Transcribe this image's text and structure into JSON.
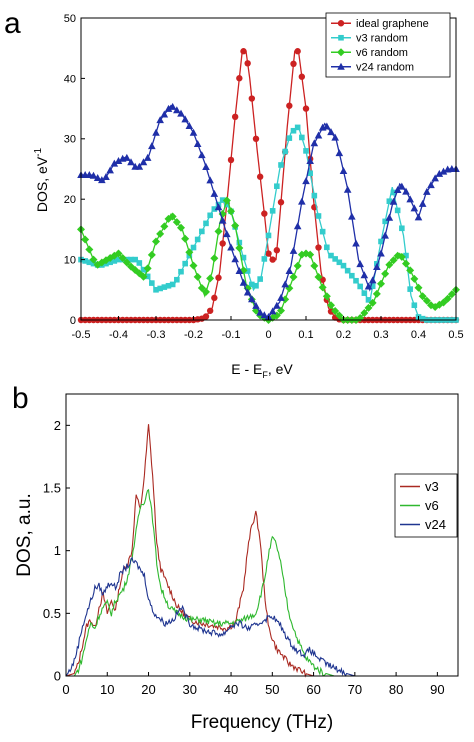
{
  "chart_data": [
    {
      "panel": "a",
      "type": "line",
      "xlabel_main": "E - E",
      "xlabel_sub": "F",
      "xlabel_unit": ", eV",
      "ylabel_main": "DOS, eV",
      "ylabel_sup": "-1",
      "xlim": [
        -0.5,
        0.5
      ],
      "ylim": [
        0,
        50
      ],
      "xticks": [
        "-0.5",
        "-0.4",
        "-0.3",
        "-0.2",
        "-0.1",
        "0",
        "0.1",
        "0.2",
        "0.3",
        "0.4",
        "0.5"
      ],
      "yticks": [
        "0",
        "10",
        "20",
        "30",
        "40",
        "50"
      ],
      "grid": false,
      "legend_position": "top-right",
      "series": [
        {
          "name": "ideal graphene",
          "color": "#cc2222",
          "marker": "circle",
          "points": [
            [
              -0.5,
              0
            ],
            [
              -0.4,
              0
            ],
            [
              -0.3,
              0
            ],
            [
              -0.2,
              0
            ],
            [
              -0.17,
              0.3
            ],
            [
              -0.15,
              2
            ],
            [
              -0.13,
              8
            ],
            [
              -0.11,
              20
            ],
            [
              -0.09,
              33
            ],
            [
              -0.07,
              44.5
            ],
            [
              -0.06,
              44.5
            ],
            [
              -0.05,
              40
            ],
            [
              -0.03,
              28
            ],
            [
              -0.01,
              17
            ],
            [
              0.0,
              11
            ],
            [
              0.01,
              10
            ],
            [
              0.02,
              10
            ],
            [
              0.03,
              17
            ],
            [
              0.05,
              32
            ],
            [
              0.07,
              44.5
            ],
            [
              0.08,
              44.5
            ],
            [
              0.1,
              35
            ],
            [
              0.12,
              20
            ],
            [
              0.14,
              8
            ],
            [
              0.16,
              2
            ],
            [
              0.18,
              0.2
            ],
            [
              0.2,
              0
            ],
            [
              0.3,
              0
            ],
            [
              0.4,
              0
            ],
            [
              0.5,
              0
            ]
          ]
        },
        {
          "name": "v3 random",
          "color": "#33cccc",
          "marker": "square",
          "points": [
            [
              -0.5,
              10
            ],
            [
              -0.45,
              9
            ],
            [
              -0.4,
              10
            ],
            [
              -0.35,
              10
            ],
            [
              -0.3,
              5
            ],
            [
              -0.25,
              6
            ],
            [
              -0.2,
              12
            ],
            [
              -0.15,
              18
            ],
            [
              -0.12,
              20
            ],
            [
              -0.1,
              18
            ],
            [
              -0.07,
              11
            ],
            [
              -0.04,
              5
            ],
            [
              -0.02,
              7
            ],
            [
              0.0,
              14
            ],
            [
              0.03,
              25
            ],
            [
              0.06,
              31
            ],
            [
              0.08,
              32
            ],
            [
              0.1,
              28
            ],
            [
              0.13,
              18
            ],
            [
              0.16,
              11
            ],
            [
              0.2,
              9
            ],
            [
              0.24,
              6
            ],
            [
              0.27,
              3
            ],
            [
              0.3,
              13
            ],
            [
              0.33,
              22
            ],
            [
              0.36,
              14
            ],
            [
              0.38,
              4
            ],
            [
              0.4,
              0.5
            ],
            [
              0.42,
              0
            ],
            [
              0.5,
              0
            ]
          ]
        },
        {
          "name": "v6 random",
          "color": "#33cc22",
          "marker": "diamond",
          "points": [
            [
              -0.5,
              15
            ],
            [
              -0.46,
              9
            ],
            [
              -0.43,
              10
            ],
            [
              -0.4,
              11
            ],
            [
              -0.37,
              9
            ],
            [
              -0.33,
              7
            ],
            [
              -0.3,
              13
            ],
            [
              -0.26,
              17.5
            ],
            [
              -0.23,
              15
            ],
            [
              -0.2,
              9
            ],
            [
              -0.17,
              4
            ],
            [
              -0.15,
              8
            ],
            [
              -0.13,
              16
            ],
            [
              -0.11,
              20
            ],
            [
              -0.09,
              16
            ],
            [
              -0.06,
              6
            ],
            [
              -0.03,
              1
            ],
            [
              0.0,
              0
            ],
            [
              0.03,
              1
            ],
            [
              0.06,
              6
            ],
            [
              0.09,
              11
            ],
            [
              0.11,
              11
            ],
            [
              0.14,
              6
            ],
            [
              0.17,
              2
            ],
            [
              0.2,
              0
            ],
            [
              0.24,
              0
            ],
            [
              0.28,
              3
            ],
            [
              0.32,
              9
            ],
            [
              0.35,
              11
            ],
            [
              0.38,
              8
            ],
            [
              0.41,
              4
            ],
            [
              0.44,
              2
            ],
            [
              0.47,
              3
            ],
            [
              0.5,
              5
            ]
          ]
        },
        {
          "name": "v24 random",
          "color": "#1f2fa8",
          "marker": "triangle",
          "points": [
            [
              -0.5,
              24
            ],
            [
              -0.47,
              24
            ],
            [
              -0.44,
              23
            ],
            [
              -0.41,
              26
            ],
            [
              -0.38,
              27
            ],
            [
              -0.35,
              25
            ],
            [
              -0.32,
              27
            ],
            [
              -0.29,
              33
            ],
            [
              -0.26,
              35.5
            ],
            [
              -0.23,
              34
            ],
            [
              -0.2,
              31
            ],
            [
              -0.17,
              26
            ],
            [
              -0.14,
              20
            ],
            [
              -0.1,
              12
            ],
            [
              -0.06,
              5
            ],
            [
              -0.02,
              1
            ],
            [
              0.0,
              0.5
            ],
            [
              0.03,
              3
            ],
            [
              0.06,
              9
            ],
            [
              0.09,
              20
            ],
            [
              0.12,
              29
            ],
            [
              0.15,
              32.5
            ],
            [
              0.18,
              30
            ],
            [
              0.21,
              22
            ],
            [
              0.24,
              10
            ],
            [
              0.27,
              5
            ],
            [
              0.3,
              11
            ],
            [
              0.33,
              19
            ],
            [
              0.35,
              22.5
            ],
            [
              0.37,
              21
            ],
            [
              0.4,
              17
            ],
            [
              0.42,
              21
            ],
            [
              0.45,
              24
            ],
            [
              0.48,
              25
            ],
            [
              0.5,
              25
            ]
          ]
        }
      ]
    },
    {
      "panel": "b",
      "type": "line",
      "xlabel": "Frequency (THz)",
      "ylabel": "DOS, a.u.",
      "xlim": [
        0,
        95
      ],
      "ylim": [
        0,
        2.25
      ],
      "xticks": [
        "0",
        "10",
        "20",
        "30",
        "40",
        "50",
        "60",
        "70",
        "80",
        "90"
      ],
      "yticks": [
        "0",
        "0.5",
        "1",
        "1.5",
        "2"
      ],
      "grid": false,
      "legend_position": "top-right",
      "series": [
        {
          "name": "v3",
          "color": "#aa2a22",
          "points": [
            [
              0,
              0
            ],
            [
              2,
              0.02
            ],
            [
              3,
              0.1
            ],
            [
              4,
              0.25
            ],
            [
              5,
              0.4
            ],
            [
              6,
              0.45
            ],
            [
              7,
              0.38
            ],
            [
              8,
              0.55
            ],
            [
              9,
              0.65
            ],
            [
              10,
              0.5
            ],
            [
              11,
              0.6
            ],
            [
              12,
              0.52
            ],
            [
              13,
              0.72
            ],
            [
              14,
              0.85
            ],
            [
              15,
              0.9
            ],
            [
              16,
              1.0
            ],
            [
              17,
              1.45
            ],
            [
              18,
              1.32
            ],
            [
              19,
              1.6
            ],
            [
              20,
              2.0
            ],
            [
              21,
              1.6
            ],
            [
              22,
              1.05
            ],
            [
              23,
              0.85
            ],
            [
              25,
              0.7
            ],
            [
              27,
              0.55
            ],
            [
              30,
              0.45
            ],
            [
              33,
              0.42
            ],
            [
              36,
              0.4
            ],
            [
              39,
              0.38
            ],
            [
              41,
              0.42
            ],
            [
              43,
              0.7
            ],
            [
              44,
              1.0
            ],
            [
              45,
              1.2
            ],
            [
              46,
              1.3
            ],
            [
              47,
              1.1
            ],
            [
              48,
              0.7
            ],
            [
              49,
              0.4
            ],
            [
              50,
              0.3
            ],
            [
              51,
              0.22
            ],
            [
              52,
              0.18
            ],
            [
              54,
              0.1
            ],
            [
              56,
              0.06
            ],
            [
              58,
              0.02
            ],
            [
              60,
              0
            ],
            [
              95,
              0
            ]
          ]
        },
        {
          "name": "v6",
          "color": "#2fb82f",
          "points": [
            [
              0,
              0
            ],
            [
              2,
              0
            ],
            [
              3,
              0.05
            ],
            [
              4,
              0.15
            ],
            [
              5,
              0.3
            ],
            [
              6,
              0.42
            ],
            [
              7,
              0.38
            ],
            [
              8,
              0.48
            ],
            [
              9,
              0.55
            ],
            [
              10,
              0.58
            ],
            [
              11,
              0.5
            ],
            [
              12,
              0.6
            ],
            [
              13,
              0.65
            ],
            [
              14,
              0.7
            ],
            [
              15,
              0.8
            ],
            [
              16,
              0.95
            ],
            [
              17,
              1.15
            ],
            [
              18,
              1.35
            ],
            [
              19,
              1.4
            ],
            [
              20,
              1.5
            ],
            [
              21,
              1.25
            ],
            [
              22,
              0.9
            ],
            [
              23,
              0.7
            ],
            [
              25,
              0.55
            ],
            [
              27,
              0.5
            ],
            [
              30,
              0.45
            ],
            [
              33,
              0.45
            ],
            [
              36,
              0.42
            ],
            [
              40,
              0.42
            ],
            [
              43,
              0.45
            ],
            [
              46,
              0.5
            ],
            [
              48,
              0.75
            ],
            [
              49,
              0.95
            ],
            [
              50,
              1.1
            ],
            [
              51,
              1.05
            ],
            [
              52,
              0.9
            ],
            [
              53,
              0.7
            ],
            [
              54,
              0.5
            ],
            [
              56,
              0.3
            ],
            [
              58,
              0.15
            ],
            [
              60,
              0.08
            ],
            [
              62,
              0.03
            ],
            [
              65,
              0
            ],
            [
              95,
              0
            ]
          ]
        },
        {
          "name": "v24",
          "color": "#1f3590",
          "points": [
            [
              0,
              0
            ],
            [
              1,
              0.05
            ],
            [
              2,
              0.12
            ],
            [
              3,
              0.25
            ],
            [
              4,
              0.4
            ],
            [
              5,
              0.5
            ],
            [
              6,
              0.6
            ],
            [
              7,
              0.7
            ],
            [
              8,
              0.72
            ],
            [
              9,
              0.65
            ],
            [
              10,
              0.72
            ],
            [
              11,
              0.75
            ],
            [
              12,
              0.7
            ],
            [
              13,
              0.8
            ],
            [
              14,
              0.85
            ],
            [
              15,
              0.88
            ],
            [
              16,
              0.92
            ],
            [
              17,
              0.9
            ],
            [
              18,
              0.85
            ],
            [
              19,
              0.8
            ],
            [
              20,
              0.62
            ],
            [
              21,
              0.52
            ],
            [
              22,
              0.48
            ],
            [
              24,
              0.42
            ],
            [
              26,
              0.45
            ],
            [
              28,
              0.55
            ],
            [
              30,
              0.42
            ],
            [
              32,
              0.38
            ],
            [
              35,
              0.35
            ],
            [
              38,
              0.33
            ],
            [
              40,
              0.4
            ],
            [
              42,
              0.42
            ],
            [
              44,
              0.38
            ],
            [
              46,
              0.4
            ],
            [
              48,
              0.45
            ],
            [
              50,
              0.48
            ],
            [
              52,
              0.4
            ],
            [
              54,
              0.28
            ],
            [
              56,
              0.2
            ],
            [
              58,
              0.17
            ],
            [
              59,
              0.21
            ],
            [
              60,
              0.18
            ],
            [
              62,
              0.12
            ],
            [
              64,
              0.08
            ],
            [
              66,
              0.05
            ],
            [
              68,
              0.02
            ],
            [
              70,
              0
            ],
            [
              95,
              0
            ]
          ]
        }
      ]
    }
  ]
}
